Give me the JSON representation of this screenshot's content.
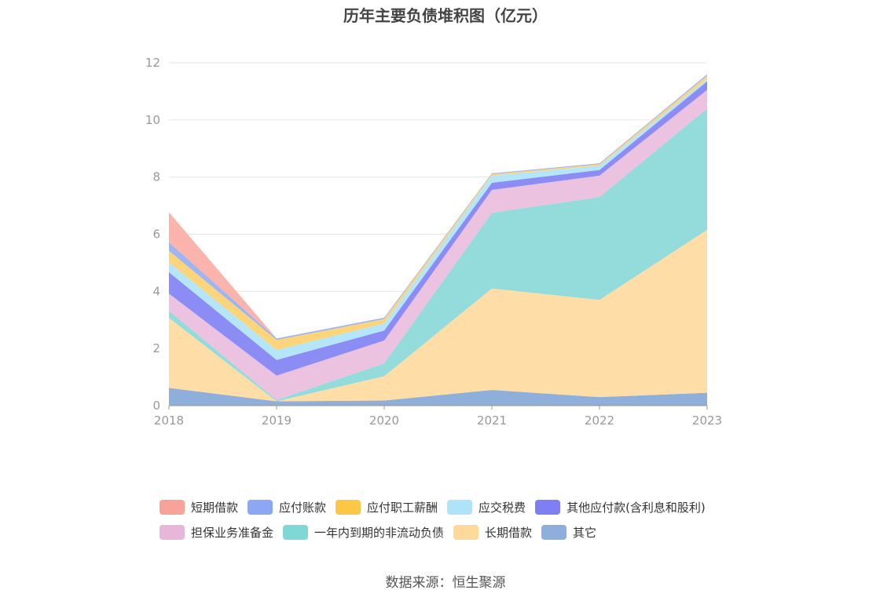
{
  "chart_data": {
    "type": "area",
    "stacked": true,
    "title": "历年主要负债堆积图（亿元）",
    "x": [
      "2018",
      "2019",
      "2020",
      "2021",
      "2022",
      "2023"
    ],
    "ylim": [
      0,
      12
    ],
    "yticks": [
      0,
      2,
      4,
      6,
      8,
      10,
      12
    ],
    "grid": true,
    "legend_position": "bottom",
    "series": [
      {
        "name": "其它",
        "color": "#8FAFDB",
        "values": [
          0.62,
          0.15,
          0.18,
          0.55,
          0.3,
          0.45
        ]
      },
      {
        "name": "长期借款",
        "color": "#FFDDA6",
        "values": [
          2.45,
          0.0,
          0.85,
          3.55,
          3.4,
          5.7
        ]
      },
      {
        "name": "一年内到期的非流动负债",
        "color": "#94DCDC",
        "values": [
          0.25,
          0.05,
          0.45,
          2.65,
          3.6,
          4.25
        ]
      },
      {
        "name": "担保业务准备金",
        "color": "#EBC2E0",
        "values": [
          0.6,
          0.85,
          0.8,
          0.8,
          0.75,
          0.65
        ]
      },
      {
        "name": "其他应付款(含利息和股利)",
        "color": "#8C8CF5",
        "values": [
          0.75,
          0.55,
          0.35,
          0.25,
          0.2,
          0.3
        ]
      },
      {
        "name": "应交税费",
        "color": "#B5E5F8",
        "values": [
          0.35,
          0.35,
          0.25,
          0.25,
          0.15,
          0.08
        ]
      },
      {
        "name": "应付职工薪酬",
        "color": "#FCD57A",
        "values": [
          0.4,
          0.35,
          0.15,
          0.05,
          0.05,
          0.12
        ]
      },
      {
        "name": "应付账款",
        "color": "#9FB5F3",
        "values": [
          0.3,
          0.05,
          0.05,
          0.03,
          0.03,
          0.05
        ]
      },
      {
        "name": "短期借款",
        "color": "#FAB4AC",
        "values": [
          1.05,
          0.0,
          0.0,
          0.0,
          0.0,
          0.0
        ]
      }
    ]
  },
  "legend": {
    "rows": [
      [
        {
          "label": "短期借款",
          "color": "#F8A39A"
        },
        {
          "label": "应付账款",
          "color": "#8CA8F5"
        },
        {
          "label": "应付职工薪酬",
          "color": "#FCC744"
        },
        {
          "label": "应交税费",
          "color": "#AEE3FA"
        },
        {
          "label": "其他应付款(含利息和股利)",
          "color": "#7D7FF3"
        }
      ],
      [
        {
          "label": "担保业务准备金",
          "color": "#E8B6D9"
        },
        {
          "label": "一年内到期的非流动负债",
          "color": "#80D8D6"
        },
        {
          "label": "长期借款",
          "color": "#FFD89B"
        },
        {
          "label": "其它",
          "color": "#8EAEDC"
        }
      ]
    ]
  },
  "source": "数据来源：恒生聚源"
}
